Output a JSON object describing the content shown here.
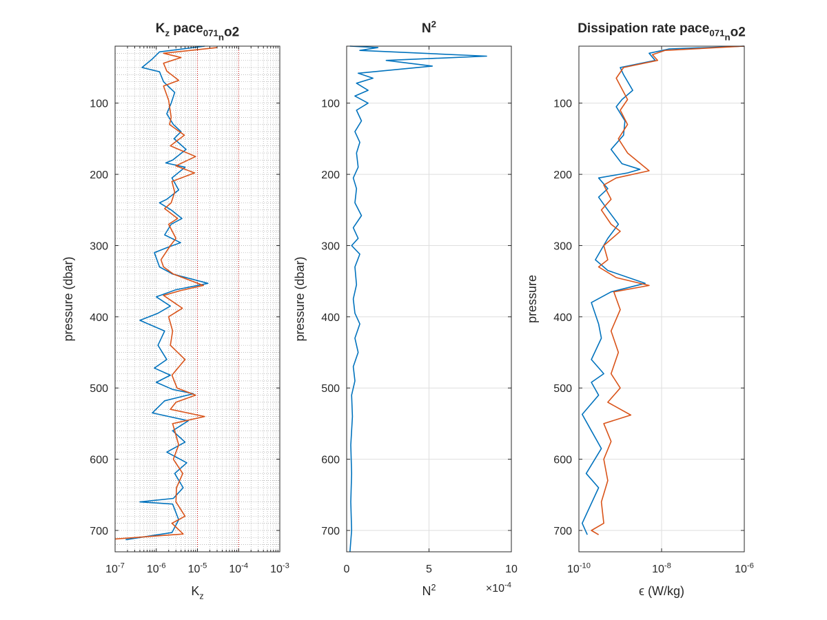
{
  "chart_data": [
    {
      "type": "line",
      "title": "K_z pace_071_no2",
      "xlabel": "K_z",
      "ylabel": "pressure (dbar)",
      "xscale": "log",
      "xlim": [
        1e-07,
        0.001
      ],
      "ylim": [
        20,
        730
      ],
      "y_reversed": true,
      "xtick_labels": [
        "10^-7",
        "10^-6",
        "10^-5",
        "10^-4",
        "10^-3"
      ],
      "ytick_labels": [
        "100",
        "200",
        "300",
        "400",
        "500",
        "600",
        "700"
      ],
      "grid": "minor-dotted",
      "reference_lines_x": [
        1e-05,
        0.0001
      ],
      "reference_line_color": "#cc0000",
      "series": [
        {
          "color": "#0072BD",
          "points": [
            [
              1.5e-05,
              20
            ],
            [
              1.2e-06,
              28
            ],
            [
              8e-07,
              38
            ],
            [
              4.5e-07,
              50
            ],
            [
              1.2e-06,
              56
            ],
            [
              1.5e-06,
              70
            ],
            [
              2.8e-06,
              85
            ],
            [
              2.3e-06,
              100
            ],
            [
              1.8e-06,
              115
            ],
            [
              2.6e-06,
              130
            ],
            [
              4e-06,
              140
            ],
            [
              2.7e-06,
              150
            ],
            [
              5.3e-06,
              165
            ],
            [
              2.5e-06,
              180
            ],
            [
              1.7e-06,
              184
            ],
            [
              5e-06,
              190
            ],
            [
              2.4e-06,
              205
            ],
            [
              3.5e-06,
              222
            ],
            [
              1.8e-06,
              235
            ],
            [
              1.2e-06,
              240
            ],
            [
              2.3e-06,
              250
            ],
            [
              4.2e-06,
              262
            ],
            [
              2.3e-06,
              270
            ],
            [
              1.6e-06,
              285
            ],
            [
              3.9e-06,
              296
            ],
            [
              2e-06,
              302
            ],
            [
              9e-07,
              310
            ],
            [
              1.2e-06,
              330
            ],
            [
              2.5e-06,
              340
            ],
            [
              1.8e-05,
              353
            ],
            [
              3e-06,
              362
            ],
            [
              1e-06,
              372
            ],
            [
              2.2e-06,
              385
            ],
            [
              1.1e-06,
              395
            ],
            [
              4e-07,
              405
            ],
            [
              1.6e-06,
              420
            ],
            [
              1.1e-06,
              440
            ],
            [
              1.8e-06,
              460
            ],
            [
              9e-07,
              472
            ],
            [
              2.2e-06,
              482
            ],
            [
              1e-06,
              492
            ],
            [
              2.5e-06,
              502
            ],
            [
              8e-06,
              508
            ],
            [
              1.6e-06,
              518
            ],
            [
              8e-07,
              535
            ],
            [
              6e-06,
              546
            ],
            [
              2.5e-06,
              560
            ],
            [
              5e-06,
              576
            ],
            [
              1.8e-06,
              590
            ],
            [
              5.5e-06,
              605
            ],
            [
              2.8e-06,
              620
            ],
            [
              4.5e-06,
              640
            ],
            [
              2.6e-06,
              655
            ],
            [
              4e-07,
              660
            ],
            [
              2.5e-06,
              663
            ],
            [
              3.5e-06,
              685
            ],
            [
              2.4e-06,
              703
            ],
            [
              1.8e-07,
              713
            ]
          ]
        },
        {
          "color": "#D95319",
          "points": [
            [
              3e-05,
              22
            ],
            [
              1.5e-06,
              30
            ],
            [
              4e-06,
              36
            ],
            [
              1.5e-06,
              44
            ],
            [
              1.8e-06,
              55
            ],
            [
              3.5e-06,
              68
            ],
            [
              1.5e-06,
              76
            ],
            [
              2e-06,
              96
            ],
            [
              2.3e-06,
              120
            ],
            [
              2.1e-06,
              130
            ],
            [
              4.8e-06,
              145
            ],
            [
              2.2e-06,
              160
            ],
            [
              9e-06,
              175
            ],
            [
              3e-06,
              188
            ],
            [
              8.5e-06,
              198
            ],
            [
              2.4e-06,
              210
            ],
            [
              2.8e-06,
              225
            ],
            [
              2.3e-06,
              240
            ],
            [
              1.6e-06,
              248
            ],
            [
              3.3e-06,
              262
            ],
            [
              2e-06,
              270
            ],
            [
              3e-06,
              290
            ],
            [
              2.2e-06,
              300
            ],
            [
              1.3e-06,
              320
            ],
            [
              1.5e-06,
              330
            ],
            [
              2.6e-06,
              340
            ],
            [
              1.4e-05,
              356
            ],
            [
              4e-06,
              363
            ],
            [
              1.5e-06,
              370
            ],
            [
              4.3e-06,
              388
            ],
            [
              2e-06,
              400
            ],
            [
              2.5e-06,
              420
            ],
            [
              2.2e-06,
              440
            ],
            [
              5e-06,
              460
            ],
            [
              2.4e-06,
              482
            ],
            [
              3.2e-06,
              500
            ],
            [
              9e-06,
              510
            ],
            [
              3e-06,
              520
            ],
            [
              2.2e-06,
              530
            ],
            [
              1.5e-05,
              540
            ],
            [
              2.5e-06,
              550
            ],
            [
              3.5e-06,
              580
            ],
            [
              2.6e-06,
              600
            ],
            [
              4.4e-06,
              620
            ],
            [
              3.1e-06,
              640
            ],
            [
              3e-06,
              660
            ],
            [
              5e-06,
              680
            ],
            [
              2.4e-06,
              690
            ],
            [
              4.5e-06,
              705
            ],
            [
              1e-07,
              712
            ]
          ]
        }
      ]
    },
    {
      "type": "line",
      "title": "N^2",
      "xlabel": "N^2",
      "ylabel": "pressure (dbar)",
      "x_multiplier": "×10^-4",
      "xlim": [
        0,
        10
      ],
      "ylim": [
        20,
        730
      ],
      "y_reversed": true,
      "xtick_labels": [
        "0",
        "5",
        "10"
      ],
      "ytick_labels": [
        "100",
        "200",
        "300",
        "400",
        "500",
        "600",
        "700"
      ],
      "grid": "major",
      "series": [
        {
          "color": "#0072BD",
          "points": [
            [
              0.2,
              20
            ],
            [
              1.9,
              22
            ],
            [
              0.8,
              26
            ],
            [
              8.5,
              34
            ],
            [
              2.4,
              40
            ],
            [
              5.2,
              48
            ],
            [
              0.7,
              58
            ],
            [
              1.6,
              65
            ],
            [
              0.6,
              72
            ],
            [
              1.3,
              82
            ],
            [
              0.5,
              90
            ],
            [
              1.3,
              100
            ],
            [
              0.6,
              110
            ],
            [
              0.9,
              125
            ],
            [
              0.5,
              140
            ],
            [
              0.8,
              155
            ],
            [
              0.6,
              170
            ],
            [
              0.7,
              190
            ],
            [
              0.4,
              205
            ],
            [
              0.6,
              220
            ],
            [
              0.5,
              240
            ],
            [
              0.9,
              258
            ],
            [
              0.4,
              275
            ],
            [
              0.7,
              290
            ],
            [
              0.3,
              300
            ],
            [
              0.8,
              312
            ],
            [
              0.5,
              330
            ],
            [
              0.6,
              355
            ],
            [
              0.4,
              375
            ],
            [
              0.5,
              395
            ],
            [
              0.8,
              410
            ],
            [
              0.5,
              430
            ],
            [
              0.7,
              450
            ],
            [
              0.4,
              470
            ],
            [
              0.5,
              490
            ],
            [
              0.3,
              510
            ],
            [
              0.35,
              540
            ],
            [
              0.25,
              580
            ],
            [
              0.3,
              620
            ],
            [
              0.25,
              660
            ],
            [
              0.3,
              700
            ],
            [
              0.2,
              730
            ]
          ]
        }
      ]
    },
    {
      "type": "line",
      "title": "Dissipation rate pace_071_no2",
      "xlabel": "ϵ (W/kg)",
      "ylabel": "pressure",
      "xscale": "log",
      "xlim": [
        1e-10,
        1e-06
      ],
      "ylim": [
        20,
        730
      ],
      "y_reversed": true,
      "xtick_labels": [
        "10^-10",
        "10^-8",
        "10^-6"
      ],
      "ytick_labels": [
        "100",
        "200",
        "300",
        "400",
        "500",
        "600",
        "700"
      ],
      "grid": "major",
      "series": [
        {
          "color": "#0072BD",
          "points": [
            [
              1e-06,
              20
            ],
            [
              1.5e-08,
              24
            ],
            [
              5e-09,
              30
            ],
            [
              7e-09,
              40
            ],
            [
              1e-09,
              50
            ],
            [
              1.2e-09,
              60
            ],
            [
              2e-09,
              82
            ],
            [
              1.1e-09,
              95
            ],
            [
              8e-10,
              105
            ],
            [
              1.3e-09,
              125
            ],
            [
              1.2e-09,
              145
            ],
            [
              6e-10,
              165
            ],
            [
              1.1e-09,
              185
            ],
            [
              3e-09,
              193
            ],
            [
              1.5e-09,
              198
            ],
            [
              3e-10,
              205
            ],
            [
              5e-10,
              220
            ],
            [
              3e-10,
              232
            ],
            [
              5e-10,
              250
            ],
            [
              9e-10,
              270
            ],
            [
              5e-10,
              290
            ],
            [
              2.5e-10,
              320
            ],
            [
              5e-10,
              335
            ],
            [
              4e-09,
              353
            ],
            [
              6e-10,
              365
            ],
            [
              2e-10,
              380
            ],
            [
              3e-10,
              410
            ],
            [
              3.5e-10,
              430
            ],
            [
              2e-10,
              460
            ],
            [
              4e-10,
              480
            ],
            [
              2e-10,
              492
            ],
            [
              3e-10,
              510
            ],
            [
              1.2e-10,
              537
            ],
            [
              2e-10,
              560
            ],
            [
              3.5e-10,
              585
            ],
            [
              1.5e-10,
              620
            ],
            [
              3e-10,
              640
            ],
            [
              1.2e-10,
              690
            ],
            [
              1.6e-10,
              706
            ]
          ]
        },
        {
          "color": "#D95319",
          "points": [
            [
              1e-06,
              20
            ],
            [
              1.2e-08,
              26
            ],
            [
              6e-09,
              32
            ],
            [
              8e-09,
              40
            ],
            [
              1.2e-09,
              50
            ],
            [
              8e-10,
              65
            ],
            [
              1.5e-09,
              95
            ],
            [
              1e-09,
              110
            ],
            [
              1.5e-09,
              130
            ],
            [
              9e-10,
              150
            ],
            [
              1.5e-09,
              170
            ],
            [
              5e-09,
              195
            ],
            [
              8e-10,
              205
            ],
            [
              4e-10,
              215
            ],
            [
              6e-10,
              235
            ],
            [
              3.5e-10,
              250
            ],
            [
              6e-10,
              270
            ],
            [
              1e-09,
              280
            ],
            [
              4e-10,
              300
            ],
            [
              5e-10,
              320
            ],
            [
              3e-10,
              330
            ],
            [
              8e-10,
              345
            ],
            [
              5e-09,
              356
            ],
            [
              7e-10,
              365
            ],
            [
              1e-09,
              390
            ],
            [
              6e-10,
              420
            ],
            [
              9e-10,
              450
            ],
            [
              6e-10,
              480
            ],
            [
              1e-09,
              500
            ],
            [
              5e-10,
              520
            ],
            [
              1.8e-09,
              538
            ],
            [
              4e-10,
              550
            ],
            [
              6e-10,
              575
            ],
            [
              4e-10,
              600
            ],
            [
              5e-10,
              630
            ],
            [
              3.5e-10,
              660
            ],
            [
              4e-10,
              690
            ],
            [
              2e-10,
              700
            ],
            [
              3e-10,
              706
            ]
          ]
        }
      ]
    }
  ]
}
